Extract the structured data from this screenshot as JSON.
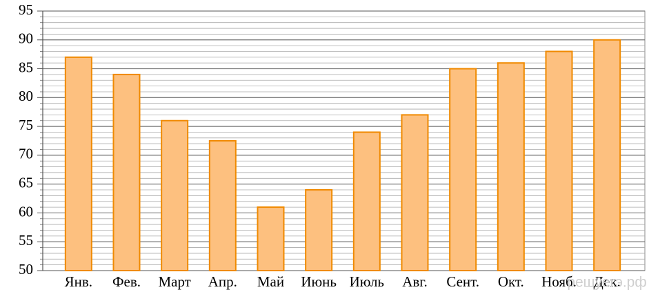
{
  "chart_data": {
    "type": "bar",
    "categories": [
      "Янв.",
      "Фев.",
      "Март",
      "Апр.",
      "Май",
      "Июнь",
      "Июль",
      "Авг.",
      "Сент.",
      "Окт.",
      "Нояб.",
      "Дек."
    ],
    "values": [
      87,
      84,
      76,
      72.5,
      61,
      64,
      74,
      77,
      85,
      86,
      88,
      90
    ],
    "color": "#fdc07f",
    "edge_color": "#f08a00",
    "ylim": [
      50,
      95
    ],
    "yticks": [
      50,
      55,
      60,
      65,
      70,
      75,
      80,
      85,
      90,
      95
    ],
    "grid": true,
    "minor_grid": true,
    "watermark": "решуегэ.рф"
  }
}
